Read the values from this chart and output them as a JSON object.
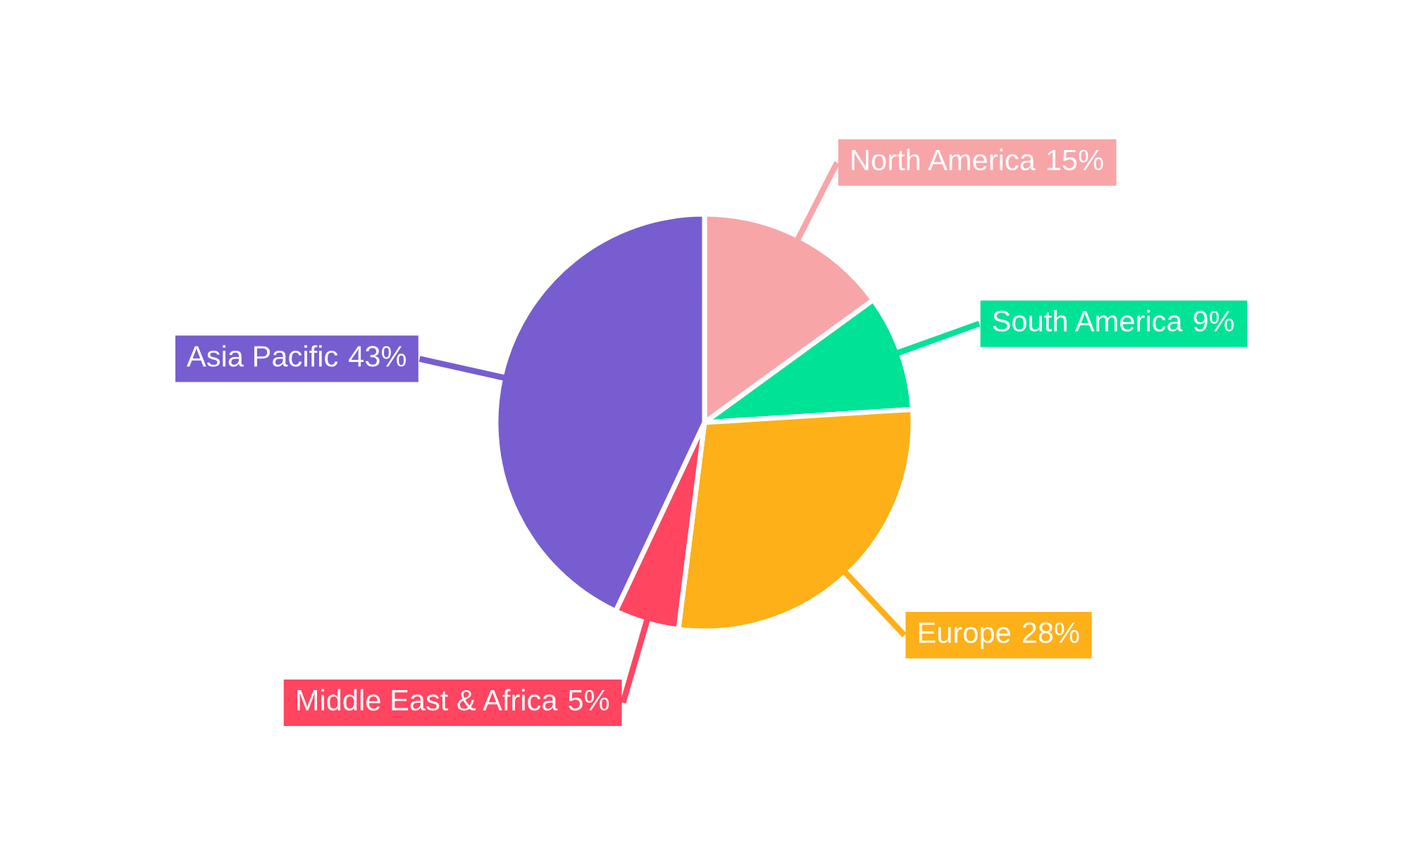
{
  "chart_data": {
    "type": "pie",
    "categories": [
      "North America",
      "South America",
      "Europe",
      "Middle East & Africa",
      "Asia Pacific"
    ],
    "values": [
      15,
      9,
      28,
      5,
      43
    ],
    "colors": [
      "#f8a5a8",
      "#00e396",
      "#feb019",
      "#ff4560",
      "#775dd0"
    ],
    "value_labels": [
      "15%",
      "9%",
      "28%",
      "5%",
      "43%"
    ]
  }
}
